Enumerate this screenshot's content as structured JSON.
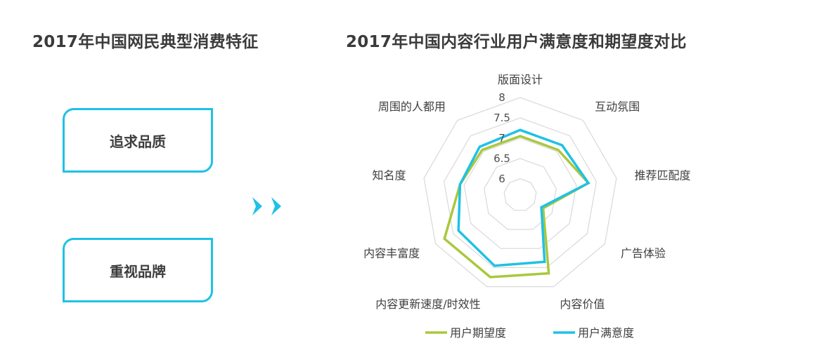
{
  "left_panel": {
    "title": "2017年中国网民典型消费特征",
    "traits": [
      "追求品质",
      "重视品牌"
    ]
  },
  "chart_data": {
    "type": "radar",
    "title": "2017年中国内容行业用户满意度和期望度对比",
    "categories": [
      "版面设计",
      "互动氛围",
      "推荐匹配度",
      "广告体验",
      "内容价值",
      "内容更新速度/时效性",
      "内容丰富度",
      "知名度",
      "周围的人都用"
    ],
    "ticks": [
      "6",
      "6.5",
      "7",
      "7.5",
      "8"
    ],
    "rlim": [
      5.6,
      8.0
    ],
    "series": [
      {
        "name": "用户期望度",
        "color": "#a9c83c",
        "values": [
          7.05,
          7.05,
          7.3,
          6.25,
          7.65,
          7.75,
          7.75,
          7.1,
          7.05
        ]
      },
      {
        "name": "用户满意度",
        "color": "#1fc1e6",
        "values": [
          7.2,
          7.2,
          7.3,
          6.2,
          7.35,
          7.45,
          7.35,
          7.1,
          7.15
        ]
      }
    ],
    "grid": true,
    "legend_position": "bottom"
  }
}
